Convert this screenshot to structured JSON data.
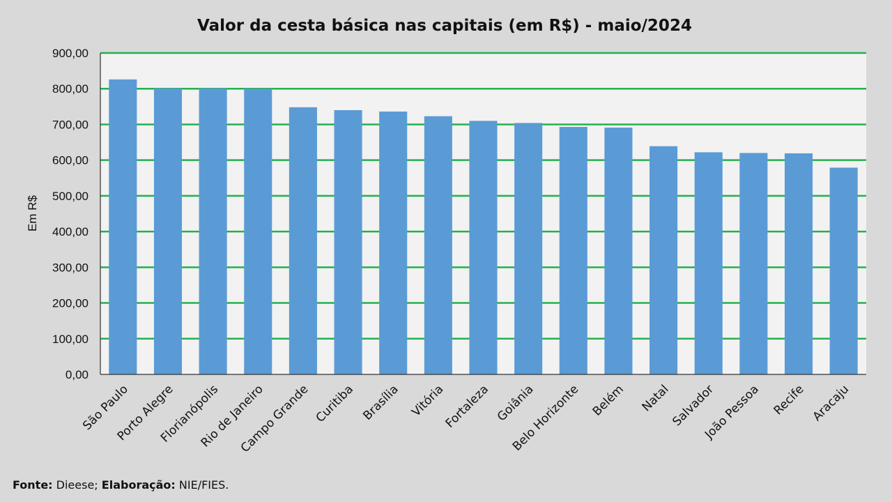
{
  "chart_data": {
    "type": "bar",
    "title": "Valor da cesta básica nas capitais (em R$) - maio/2024",
    "ylabel": "Em R$",
    "ylim": [
      0,
      900
    ],
    "ytick_labels": [
      "0,00",
      "100,00",
      "200,00",
      "300,00",
      "400,00",
      "500,00",
      "600,00",
      "700,00",
      "800,00",
      "900,00"
    ],
    "grid": true,
    "categories": [
      "São Paulo",
      "Porto Alegre",
      "Florianópolis",
      "Rio de Janeiro",
      "Campo Grande",
      "Curitiba",
      "Brasília",
      "Vitória",
      "Fortaleza",
      "Goiânia",
      "Belo Horizonte",
      "Belém",
      "Natal",
      "Salvador",
      "João Pessoa",
      "Recife",
      "Aracaju"
    ],
    "values": [
      826,
      801,
      801,
      800,
      748,
      740,
      736,
      723,
      710,
      704,
      693,
      691,
      639,
      622,
      620,
      619,
      579
    ],
    "colors": {
      "bar": "#5b9bd5",
      "grid": "#22b14c",
      "plot_bg": "#f2f2f2",
      "page_bg": "#d9d9d9"
    }
  },
  "footer": {
    "source_label": "Fonte:",
    "source_value": "Dieese;",
    "credit_label": "Elaboração:",
    "credit_value": "NIE/FIES."
  }
}
